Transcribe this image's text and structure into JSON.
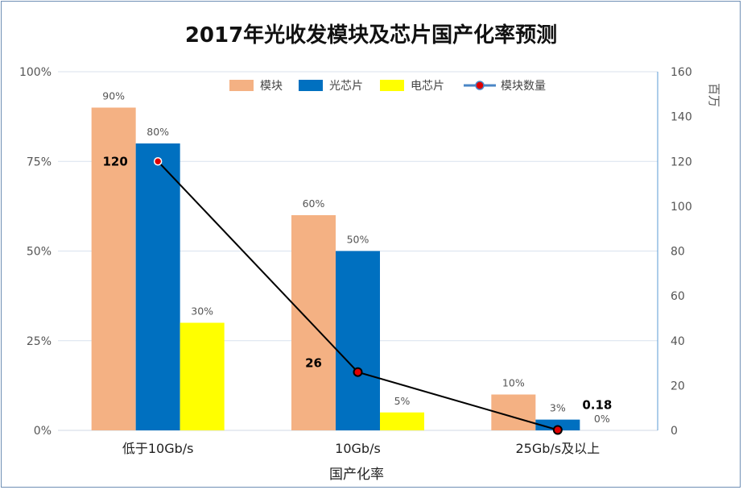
{
  "chart_data": {
    "type": "bar",
    "title": "2017年光收发模块及芯片国产化率预测",
    "categories": [
      "低于10Gb/s",
      "10Gb/s",
      "25Gb/s及以上"
    ],
    "xlabel": "国产化率",
    "ylabel": "",
    "ylim": [
      0,
      100
    ],
    "y_ticks": [
      "0%",
      "25%",
      "50%",
      "75%",
      "100%"
    ],
    "y2label": "百万",
    "y2lim": [
      0,
      160
    ],
    "y2_ticks": [
      "0",
      "20",
      "40",
      "60",
      "80",
      "100",
      "120",
      "140",
      "160"
    ],
    "series": [
      {
        "name": "模块",
        "values": [
          90,
          60,
          10
        ],
        "labels": [
          "90%",
          "60%",
          "10%"
        ],
        "color": "#f4b183"
      },
      {
        "name": "光芯片",
        "values": [
          80,
          50,
          3
        ],
        "labels": [
          "80%",
          "50%",
          "3%"
        ],
        "color": "#0070c0"
      },
      {
        "name": "电芯片",
        "values": [
          30,
          5,
          0
        ],
        "labels": [
          "30%",
          "5%",
          "0%"
        ],
        "color": "#ffff00"
      }
    ],
    "line_series": {
      "name": "模块数量",
      "values": [
        120,
        26,
        0.18
      ],
      "labels": [
        "120",
        "26",
        "0.18"
      ],
      "axis": "right",
      "line_color": "#000000",
      "marker_color": "#e00000"
    },
    "legend_position": "top",
    "grid": true
  }
}
